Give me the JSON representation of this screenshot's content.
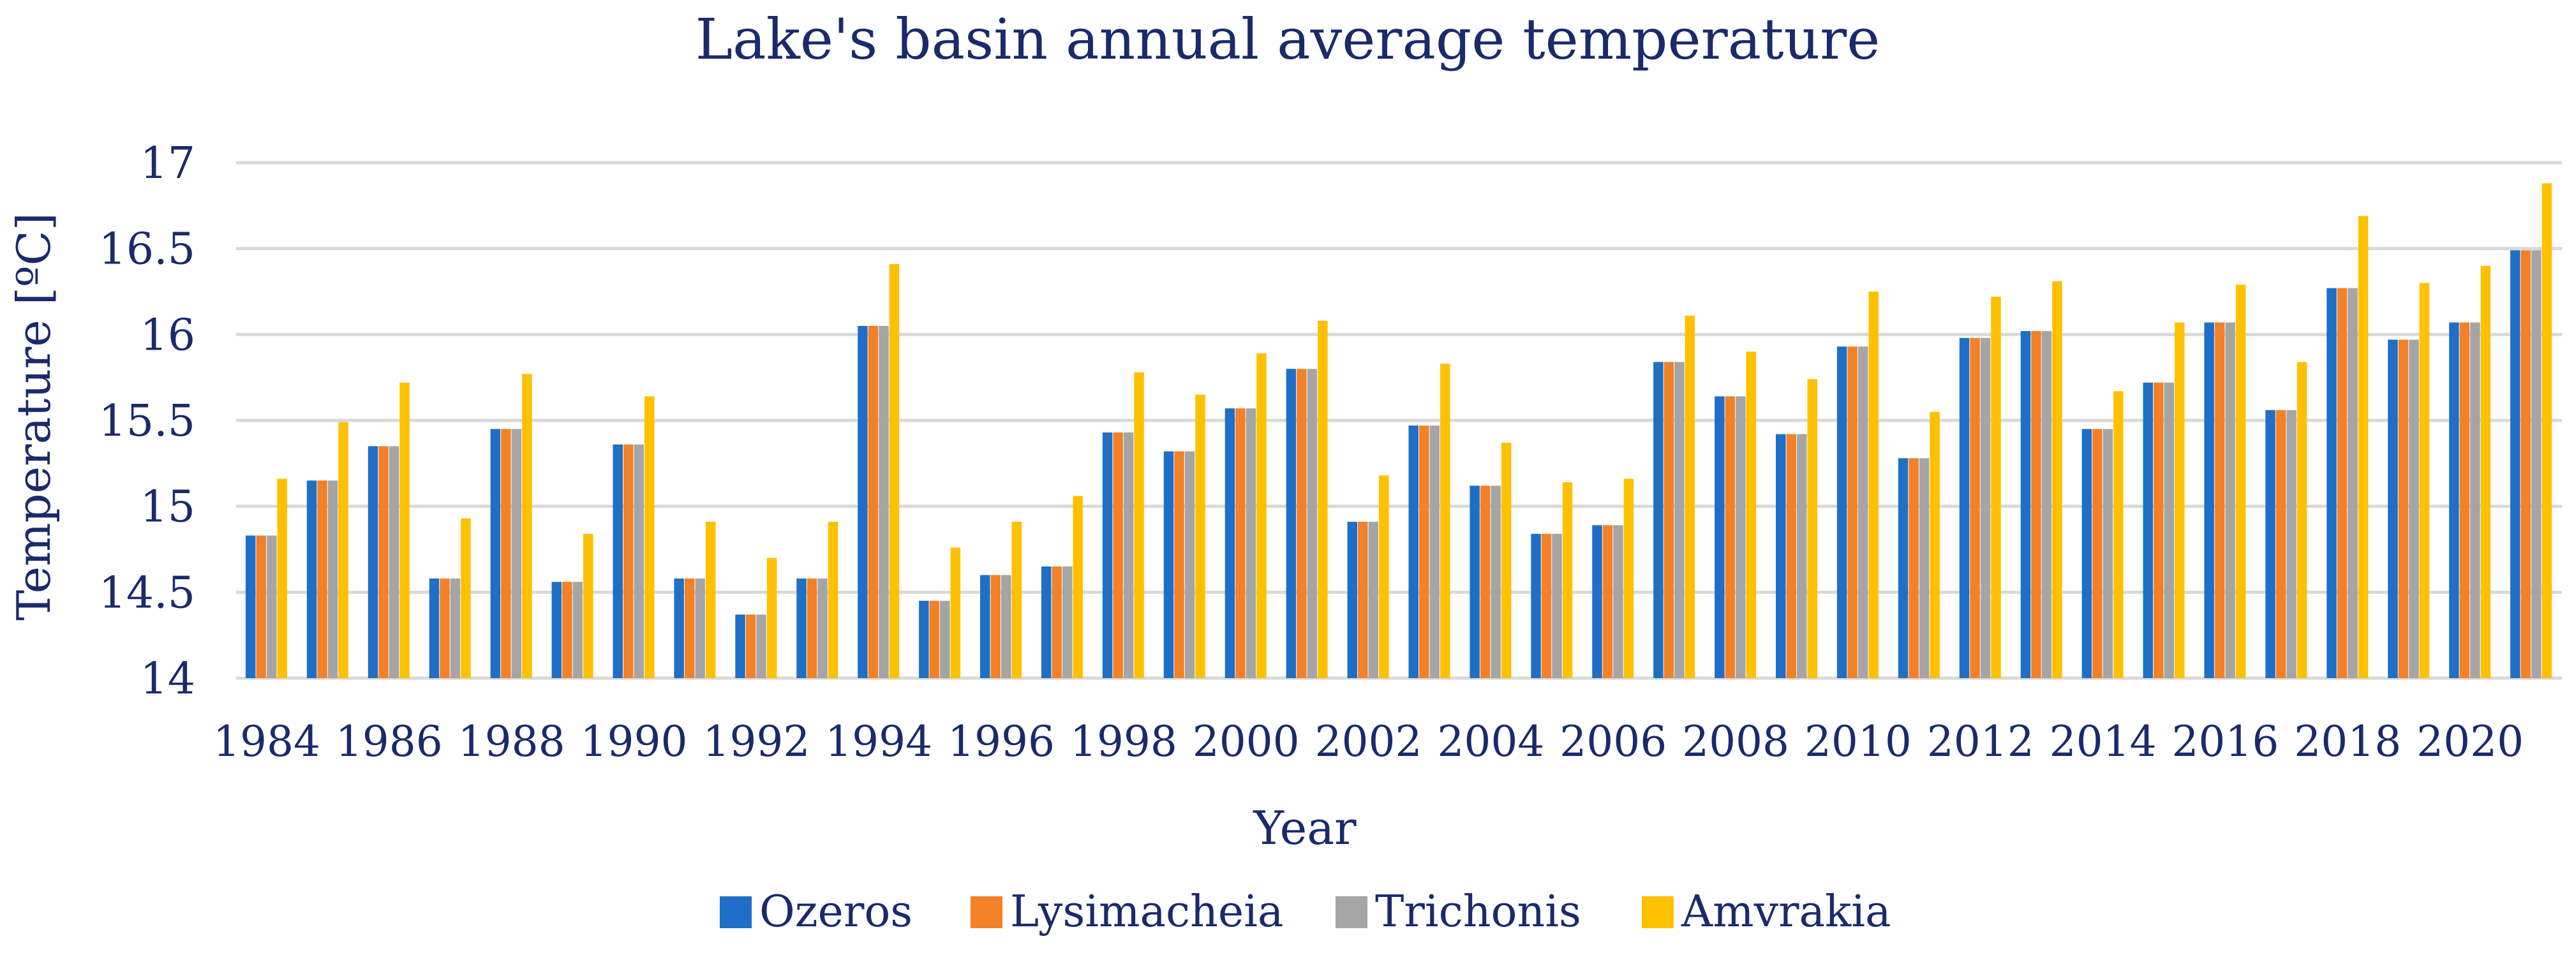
{
  "chart_data": {
    "type": "bar",
    "title": "Lake's basin annual average temperature",
    "xlabel": "Year",
    "ylabel": "Temperature [ºC]",
    "ylim": [
      14,
      17
    ],
    "yticks": [
      "14",
      "14.5",
      "15",
      "15.5",
      "16",
      "16.5",
      "17"
    ],
    "grid": true,
    "legend_position": "bottom",
    "categories": [
      "1984",
      "1985",
      "1986",
      "1987",
      "1988",
      "1989",
      "1990",
      "1991",
      "1992",
      "1993",
      "1994",
      "1995",
      "1996",
      "1997",
      "1998",
      "1999",
      "2000",
      "2001",
      "2002",
      "2003",
      "2004",
      "2005",
      "2006",
      "2007",
      "2008",
      "2009",
      "2010",
      "2011",
      "2012",
      "2013",
      "2014",
      "2015",
      "2016",
      "2017",
      "2018",
      "2019",
      "2020",
      "2021"
    ],
    "xtick_labels": [
      "1984",
      "1986",
      "1988",
      "1990",
      "1992",
      "1994",
      "1996",
      "1998",
      "2000",
      "2002",
      "2004",
      "2006",
      "2008",
      "2010",
      "2012",
      "2014",
      "2016",
      "2018",
      "2020"
    ],
    "series": [
      {
        "name": "Ozeros",
        "color": "#1f6fc6",
        "values": [
          14.83,
          15.15,
          15.35,
          14.58,
          15.45,
          14.56,
          15.36,
          14.58,
          14.37,
          14.58,
          16.05,
          14.45,
          14.6,
          14.65,
          15.43,
          15.32,
          15.57,
          15.8,
          14.91,
          15.47,
          15.12,
          14.84,
          14.89,
          15.84,
          15.64,
          15.42,
          15.93,
          15.28,
          15.98,
          16.02,
          15.45,
          15.72,
          16.07,
          15.56,
          16.27,
          15.97,
          16.07,
          16.49
        ]
      },
      {
        "name": "Lysimacheia",
        "color": "#f28127",
        "values": [
          14.83,
          15.15,
          15.35,
          14.58,
          15.45,
          14.56,
          15.36,
          14.58,
          14.37,
          14.58,
          16.05,
          14.45,
          14.6,
          14.65,
          15.43,
          15.32,
          15.57,
          15.8,
          14.91,
          15.47,
          15.12,
          14.84,
          14.89,
          15.84,
          15.64,
          15.42,
          15.93,
          15.28,
          15.98,
          16.02,
          15.45,
          15.72,
          16.07,
          15.56,
          16.27,
          15.97,
          16.07,
          16.49
        ]
      },
      {
        "name": "Trichonis",
        "color": "#a5a5a5",
        "values": [
          14.83,
          15.15,
          15.35,
          14.58,
          15.45,
          14.56,
          15.36,
          14.58,
          14.37,
          14.58,
          16.05,
          14.45,
          14.6,
          14.65,
          15.43,
          15.32,
          15.57,
          15.8,
          14.91,
          15.47,
          15.12,
          14.84,
          14.89,
          15.84,
          15.64,
          15.42,
          15.93,
          15.28,
          15.98,
          16.02,
          15.45,
          15.72,
          16.07,
          15.56,
          16.27,
          15.97,
          16.07,
          16.49
        ]
      },
      {
        "name": "Amvrakia",
        "color": "#ffc000",
        "values": [
          15.16,
          15.49,
          15.72,
          14.93,
          15.77,
          14.84,
          15.64,
          14.91,
          14.7,
          14.91,
          16.41,
          14.76,
          14.91,
          15.06,
          15.78,
          15.65,
          15.89,
          16.08,
          15.18,
          15.83,
          15.37,
          15.14,
          15.16,
          16.11,
          15.9,
          15.74,
          16.25,
          15.55,
          16.22,
          16.31,
          15.67,
          16.07,
          16.29,
          15.84,
          16.69,
          16.3,
          16.4,
          16.88
        ]
      }
    ]
  }
}
